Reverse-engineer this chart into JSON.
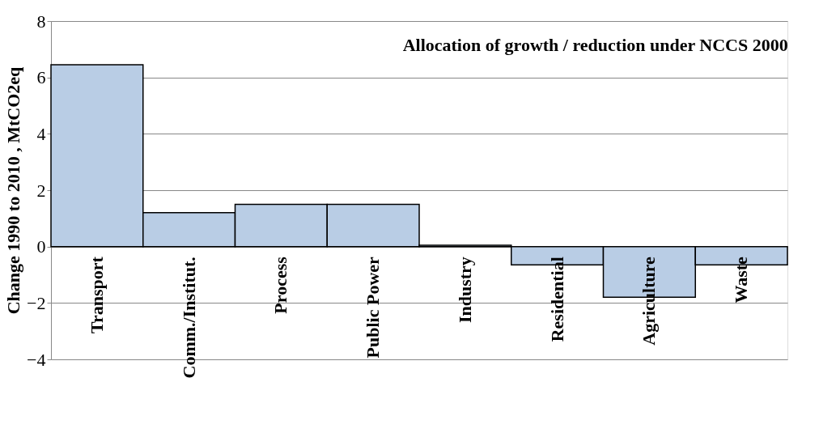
{
  "chart_data": {
    "type": "bar",
    "title": "Allocation of growth / reduction under NCCS 2000",
    "ylabel": "Change 1990 to 2010 , MtCO2eq",
    "categories": [
      "Transport",
      "Comm./Institut.",
      "Process",
      "Public Power",
      "Industry",
      "Residential",
      "Agriculture",
      "Waste"
    ],
    "values": [
      6.45,
      1.2,
      1.5,
      1.5,
      0.05,
      -0.65,
      -1.8,
      -0.65
    ],
    "color": "#b9cde5",
    "ylim": [
      -4,
      8
    ],
    "yticks": [
      -4,
      -2,
      0,
      2,
      4,
      6,
      8
    ],
    "grid": "y"
  }
}
